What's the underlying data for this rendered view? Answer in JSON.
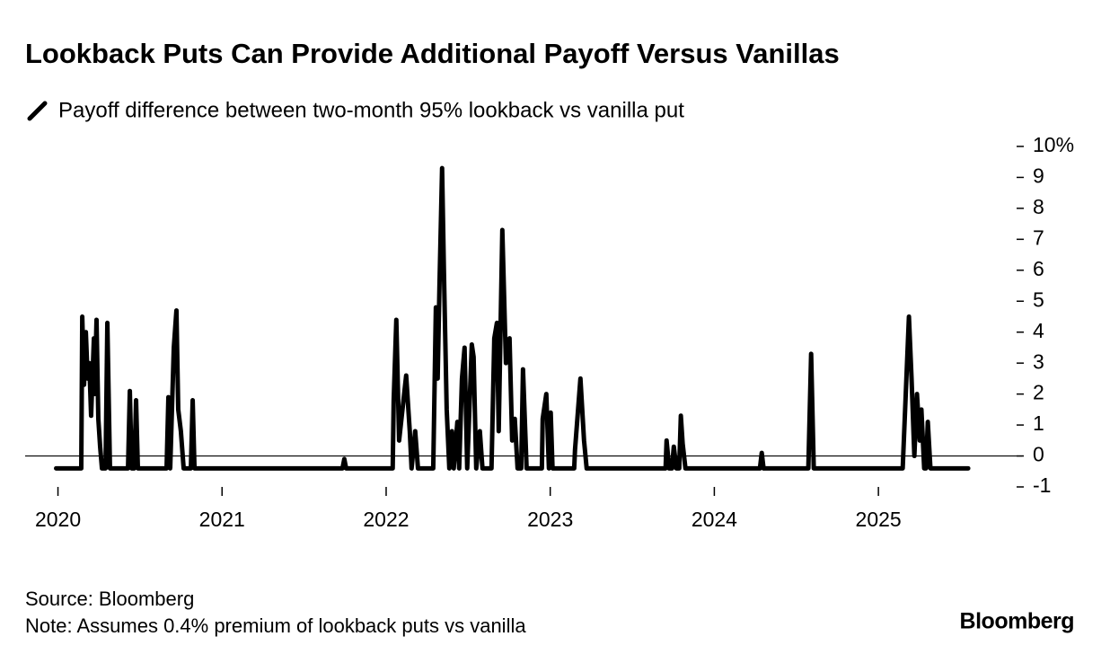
{
  "chart_data": {
    "type": "line",
    "title": "Lookback Puts Can Provide Additional Payoff Versus Vanillas",
    "source": "Source: Bloomberg",
    "note": "Note: Assumes 0.4% premium of lookback puts vs vanilla",
    "brand": "Bloomberg",
    "x": [
      2019.989,
      2020.142,
      2020.148,
      2020.159,
      2020.17,
      2020.181,
      2020.191,
      2020.202,
      2020.219,
      2020.224,
      2020.235,
      2020.246,
      2020.257,
      2020.268,
      2020.29,
      2020.301,
      2020.317,
      2020.427,
      2020.438,
      2020.449,
      2020.465,
      2020.476,
      2020.487,
      2020.662,
      2020.673,
      2020.684,
      2020.706,
      2020.722,
      2020.733,
      2020.749,
      2020.766,
      2020.81,
      2020.821,
      2020.832,
      2021.734,
      2021.745,
      2021.756,
      2022.04,
      2022.046,
      2022.062,
      2022.079,
      2022.122,
      2022.144,
      2022.155,
      2022.177,
      2022.194,
      2022.287,
      2022.303,
      2022.314,
      2022.325,
      2022.341,
      2022.352,
      2022.369,
      2022.385,
      2022.401,
      2022.412,
      2022.434,
      2022.445,
      2022.462,
      2022.478,
      2022.494,
      2022.522,
      2022.533,
      2022.549,
      2022.571,
      2022.587,
      2022.642,
      2022.659,
      2022.675,
      2022.686,
      2022.708,
      2022.73,
      2022.752,
      2022.768,
      2022.784,
      2022.801,
      2022.823,
      2022.834,
      2022.856,
      2022.949,
      2022.954,
      2022.976,
      2022.992,
      2023.003,
      2023.014,
      2023.146,
      2023.151,
      2023.184,
      2023.206,
      2023.222,
      2023.703,
      2023.709,
      2023.725,
      2023.742,
      2023.753,
      2023.769,
      2023.786,
      2023.796,
      2023.807,
      2023.824,
      2024.278,
      2024.289,
      2024.3,
      2024.573,
      2024.59,
      2024.606,
      2025.148,
      2025.186,
      2025.202,
      2025.219,
      2025.235,
      2025.252,
      2025.262,
      2025.279,
      2025.29,
      2025.301,
      2025.317,
      2025.547
    ],
    "series": [
      {
        "name": "Payoff difference between two-month 95% lookback vs vanilla put",
        "color": "#000000",
        "values": [
          -0.4,
          -0.4,
          4.5,
          2.3,
          4.0,
          2.5,
          3.0,
          1.3,
          3.8,
          2.0,
          4.4,
          1.2,
          0.3,
          -0.4,
          -0.4,
          4.3,
          -0.4,
          -0.4,
          2.1,
          -0.4,
          -0.4,
          1.8,
          -0.4,
          -0.4,
          1.9,
          -0.4,
          3.5,
          4.7,
          1.5,
          0.8,
          -0.4,
          -0.4,
          1.8,
          -0.4,
          -0.4,
          -0.1,
          -0.4,
          -0.4,
          1.8,
          4.4,
          0.5,
          2.6,
          0.8,
          -0.4,
          0.8,
          -0.4,
          -0.4,
          4.8,
          2.5,
          5.5,
          9.3,
          6.0,
          1.5,
          -0.4,
          0.8,
          -0.4,
          1.1,
          -0.4,
          2.5,
          3.5,
          -0.4,
          3.6,
          3.2,
          -0.4,
          0.8,
          -0.4,
          -0.4,
          3.8,
          4.3,
          0.8,
          7.3,
          3.0,
          3.8,
          0.5,
          1.2,
          -0.4,
          -0.4,
          2.8,
          -0.4,
          -0.4,
          1.2,
          2.0,
          -0.4,
          1.4,
          -0.4,
          -0.4,
          0.2,
          2.5,
          0.5,
          -0.4,
          -0.4,
          0.5,
          -0.4,
          -0.4,
          0.3,
          -0.4,
          -0.4,
          1.3,
          0.4,
          -0.4,
          -0.4,
          0.1,
          -0.4,
          -0.4,
          3.3,
          -0.4,
          -0.4,
          4.5,
          2.5,
          0.0,
          2.0,
          0.5,
          1.5,
          -0.4,
          -0.4,
          1.1,
          -0.4,
          -0.4
        ]
      }
    ],
    "xlim": [
      2019.8,
      2025.875
    ],
    "xticks": [
      2020,
      2021,
      2022,
      2023,
      2024,
      2025
    ],
    "ylim": [
      -1,
      10
    ],
    "yticks": [
      {
        "value": 10,
        "label": "10%"
      },
      9,
      8,
      7,
      6,
      5,
      4,
      3,
      2,
      1,
      0,
      -1
    ]
  }
}
